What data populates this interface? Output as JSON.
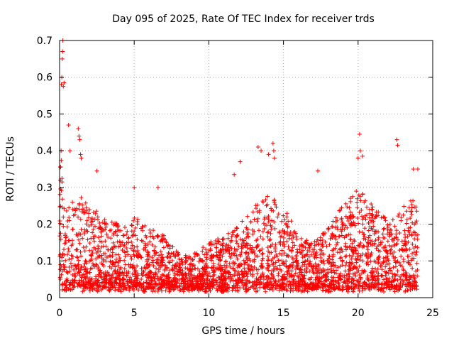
{
  "chart_data": {
    "type": "scatter",
    "title": "Day 095 of 2025, Rate Of TEC Index for receiver trds",
    "xlabel": "GPS time / hours",
    "ylabel": "ROTI / TECUs",
    "xlim": [
      0,
      25
    ],
    "ylim": [
      0,
      0.7
    ],
    "xticks": [
      "0",
      "5",
      "10",
      "15",
      "20",
      "25"
    ],
    "yticks": [
      "0",
      "0.1",
      "0.2",
      "0.3",
      "0.4",
      "0.5",
      "0.6",
      "0.7"
    ],
    "grid": true,
    "marker": "+",
    "color": "#ff0000",
    "series": [
      {
        "name": "trds",
        "envelope_x": [
          0,
          0.1,
          0.2,
          0.5,
          1.0,
          1.3,
          1.5,
          2.0,
          3.0,
          4.0,
          5.0,
          6.0,
          7.0,
          8.0,
          9.0,
          10.0,
          11.0,
          12.0,
          13.0,
          14.0,
          15.0,
          16.0,
          17.0,
          18.0,
          19.0,
          20.0,
          21.0,
          22.0,
          23.0,
          24.0
        ],
        "envelope_y": [
          0.3,
          0.4,
          0.28,
          0.25,
          0.27,
          0.3,
          0.28,
          0.25,
          0.22,
          0.2,
          0.22,
          0.2,
          0.17,
          0.12,
          0.12,
          0.15,
          0.17,
          0.2,
          0.25,
          0.28,
          0.25,
          0.17,
          0.15,
          0.2,
          0.25,
          0.3,
          0.25,
          0.22,
          0.25,
          0.28
        ],
        "outliers": [
          {
            "x": 0.05,
            "y": 0.32
          },
          {
            "x": 0.1,
            "y": 0.4
          },
          {
            "x": 0.12,
            "y": 0.58
          },
          {
            "x": 0.15,
            "y": 0.6
          },
          {
            "x": 0.18,
            "y": 0.65
          },
          {
            "x": 0.2,
            "y": 0.67
          },
          {
            "x": 0.22,
            "y": 0.7
          },
          {
            "x": 0.25,
            "y": 0.575
          },
          {
            "x": 0.3,
            "y": 0.585
          },
          {
            "x": 0.6,
            "y": 0.47
          },
          {
            "x": 0.7,
            "y": 0.4
          },
          {
            "x": 1.25,
            "y": 0.46
          },
          {
            "x": 1.3,
            "y": 0.44
          },
          {
            "x": 1.35,
            "y": 0.43
          },
          {
            "x": 1.4,
            "y": 0.39
          },
          {
            "x": 1.45,
            "y": 0.38
          },
          {
            "x": 2.5,
            "y": 0.345
          },
          {
            "x": 5.0,
            "y": 0.3
          },
          {
            "x": 6.6,
            "y": 0.3
          },
          {
            "x": 11.7,
            "y": 0.335
          },
          {
            "x": 12.1,
            "y": 0.37
          },
          {
            "x": 13.3,
            "y": 0.41
          },
          {
            "x": 13.5,
            "y": 0.4
          },
          {
            "x": 14.0,
            "y": 0.39
          },
          {
            "x": 14.3,
            "y": 0.42
          },
          {
            "x": 14.35,
            "y": 0.4
          },
          {
            "x": 14.4,
            "y": 0.38
          },
          {
            "x": 17.3,
            "y": 0.345
          },
          {
            "x": 20.0,
            "y": 0.38
          },
          {
            "x": 20.1,
            "y": 0.445
          },
          {
            "x": 20.15,
            "y": 0.4
          },
          {
            "x": 20.3,
            "y": 0.385
          },
          {
            "x": 22.6,
            "y": 0.43
          },
          {
            "x": 22.65,
            "y": 0.415
          },
          {
            "x": 23.7,
            "y": 0.35
          },
          {
            "x": 24.0,
            "y": 0.35
          }
        ]
      }
    ]
  }
}
